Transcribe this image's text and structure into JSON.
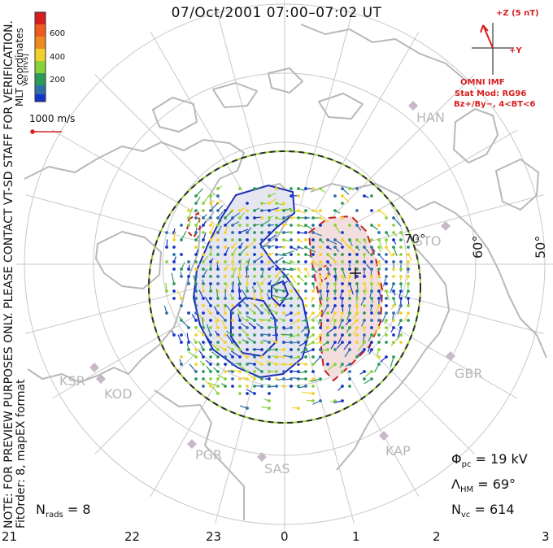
{
  "title": "07/Oct/2001 07:00–07:02 UT",
  "coordinates_label": "MLT coordinates",
  "colorbar": {
    "label": "Vel [m/s]",
    "ticks": [
      "600",
      "400",
      "200"
    ],
    "colors": [
      "#d71e1e",
      "#f08a1e",
      "#f0d22a",
      "#8ad23a",
      "#2d9a5a",
      "#2e6fa8",
      "#1436c8"
    ]
  },
  "vector_scale": {
    "label": "1000 m/s",
    "color": "#d81e1e"
  },
  "imf": {
    "axis_z": "+Z (5 nT)",
    "axis_y": "+Y",
    "source": "OMNI IMF",
    "stat_mod": "Stat Mod: RG96",
    "condition": "Bz+/By−, 4<BT<6",
    "color": "#d81e1e"
  },
  "latitude_labels": [
    "70°",
    "60°",
    "50°"
  ],
  "mlt_labels": [
    "21",
    "22",
    "23",
    "0",
    "1",
    "2",
    "3"
  ],
  "stations": [
    "HAN",
    "STO",
    "GBR",
    "KAP",
    "SAS",
    "PGR",
    "KOD",
    "KSR"
  ],
  "disclaimer": "NOTE: FOR PREVIEW PURPOSES ONLY. PLEASE CONTACT VT-SD STAFF FOR VERIFICATION.",
  "fit_info": "FitOrder: 8, mapEX format",
  "stats": {
    "phi_symbol": "Φ",
    "phi_sub": "pc",
    "phi_value": " = 19 kV",
    "lambda_symbol": "Λ",
    "lambda_sub": "HM",
    "lambda_value": " = 69°",
    "nvc_symbol": "N",
    "nvc_sub": "vc",
    "nvc_value": " = 614",
    "nrads_symbol": "N",
    "nrads_sub": "rads",
    "nrads_value": " = 8"
  },
  "colors": {
    "grid": "#c8c8c8",
    "coast": "#b8b8b8",
    "neg_cell_fill": "#e6e6f2",
    "neg_cell_line": "#1e2fb4",
    "pos_cell_fill": "#f2dede",
    "pos_cell_line": "#c41e1e",
    "hm_boundary_a": "#2a2a2a",
    "hm_boundary_b": "#9ad23a",
    "station_marker": "#c9b8c9"
  }
}
